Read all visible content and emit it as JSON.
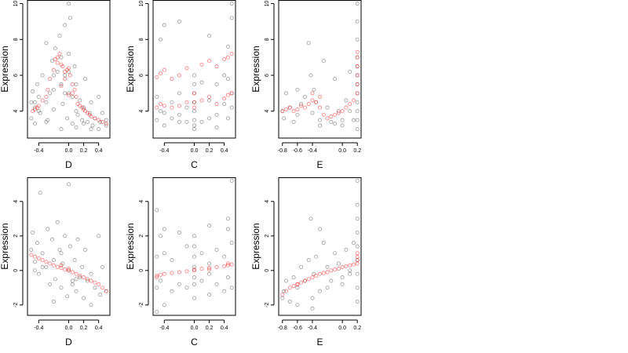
{
  "colors": {
    "black_points": "#000000",
    "red_points": "#ff0000",
    "axis": "#000000"
  },
  "chart_data": [
    {
      "type": "scatter",
      "xlabel": "D",
      "ylabel": "Expression",
      "xlim": [
        -0.55,
        0.55
      ],
      "ylim": [
        2.5,
        10.2
      ],
      "xticks": [
        -0.4,
        0.0,
        0.2,
        0.4
      ],
      "xtick_labels": [
        "-0.4",
        "0.0",
        "0.2",
        "0.4"
      ],
      "yticks": [
        4,
        6,
        8,
        10
      ],
      "ytick_labels": [
        "4",
        "6",
        "8",
        "10"
      ],
      "series": [
        {
          "color": "#000000",
          "opacity": 0.45,
          "x": [
            -0.5,
            -0.5,
            -0.48,
            -0.45,
            -0.45,
            -0.42,
            -0.4,
            -0.4,
            -0.38,
            -0.35,
            -0.3,
            -0.3,
            -0.28,
            -0.25,
            -0.22,
            -0.2,
            -0.2,
            -0.18,
            -0.15,
            -0.12,
            -0.1,
            -0.1,
            -0.08,
            -0.05,
            -0.05,
            -0.02,
            0.0,
            0.0,
            0.02,
            0.05,
            0.05,
            0.08,
            0.1,
            0.1,
            0.12,
            0.15,
            0.18,
            0.2,
            0.22,
            0.25,
            0.28,
            0.3,
            0.32,
            0.35,
            0.4,
            0.42,
            0.45,
            0.5,
            0.5,
            -0.3,
            -0.1,
            0.0,
            0.1,
            0.2,
            0.3,
            -0.45,
            -0.2,
            0.4,
            0.0,
            -0.05
          ],
          "y": [
            4.5,
            3.6,
            5.1,
            4.2,
            3.3,
            5.5,
            4.0,
            4.8,
            3.9,
            6.0,
            4.5,
            7.8,
            3.5,
            5.0,
            6.8,
            5.2,
            4.1,
            7.5,
            6.2,
            8.2,
            5.5,
            7.0,
            4.4,
            6.0,
            8.8,
            3.6,
            5.0,
            7.2,
            9.2,
            4.8,
            3.3,
            6.5,
            4.0,
            5.5,
            3.8,
            4.6,
            3.5,
            4.2,
            5.8,
            3.4,
            3.9,
            4.5,
            3.2,
            3.6,
            4.8,
            3.4,
            3.9,
            3.2,
            3.5,
            3.4,
            3.0,
            10.0,
            3.1,
            3.3,
            3.0,
            4.5,
            6.0,
            3.0,
            6.2,
            5.0
          ]
        },
        {
          "color": "#ff0000",
          "opacity": 0.6,
          "x": [
            -0.48,
            -0.45,
            -0.42,
            -0.4,
            -0.35,
            -0.3,
            -0.28,
            -0.25,
            -0.2,
            -0.18,
            -0.15,
            -0.12,
            -0.1,
            -0.08,
            -0.05,
            -0.02,
            0.0,
            0.02,
            0.05,
            0.08,
            0.1,
            0.12,
            0.15,
            0.18,
            0.2,
            0.22,
            0.25,
            0.28,
            0.3,
            0.35,
            0.4,
            0.45,
            0.5,
            -0.15,
            -0.05,
            0.05,
            -0.1,
            0.0
          ],
          "y": [
            4.0,
            4.1,
            4.2,
            4.3,
            4.6,
            4.8,
            5.2,
            5.8,
            6.3,
            6.9,
            7.0,
            7.2,
            6.6,
            6.5,
            6.2,
            6.3,
            6.4,
            6.0,
            5.5,
            5.2,
            4.8,
            4.4,
            4.3,
            4.2,
            4.1,
            4.0,
            3.9,
            3.8,
            3.7,
            3.6,
            3.5,
            3.4,
            3.3,
            6.7,
            5.8,
            5.0,
            5.4,
            4.9
          ]
        }
      ]
    },
    {
      "type": "scatter",
      "xlabel": "C",
      "ylabel": "Expression",
      "xlim": [
        -0.55,
        0.55
      ],
      "ylim": [
        2.5,
        10.2
      ],
      "xticks": [
        -0.4,
        0.0,
        0.2,
        0.4
      ],
      "xtick_labels": [
        "-0.4",
        "0.0",
        "0.2",
        "0.4"
      ],
      "yticks": [
        4,
        6,
        8,
        10
      ],
      "ytick_labels": [
        "4",
        "6",
        "8",
        "10"
      ],
      "series": [
        {
          "color": "#000000",
          "opacity": 0.45,
          "x": [
            -0.5,
            -0.5,
            -0.45,
            -0.45,
            -0.4,
            -0.4,
            -0.3,
            -0.3,
            -0.2,
            -0.2,
            -0.2,
            -0.1,
            -0.1,
            0.0,
            0.0,
            0.0,
            0.0,
            0.0,
            0.0,
            0.0,
            0.1,
            0.1,
            0.2,
            0.2,
            0.2,
            0.3,
            0.3,
            0.4,
            0.4,
            0.45,
            0.45,
            0.5,
            0.5,
            0.5,
            -0.4,
            0.0,
            0.3,
            -0.2,
            0.45,
            0.5
          ],
          "y": [
            3.5,
            4.8,
            4.0,
            8.0,
            3.2,
            8.8,
            4.5,
            3.6,
            3.8,
            5.0,
            9.0,
            4.2,
            3.4,
            3.0,
            3.5,
            4.0,
            4.5,
            5.0,
            5.5,
            6.0,
            3.4,
            5.6,
            3.6,
            4.6,
            8.2,
            3.8,
            5.5,
            4.4,
            6.0,
            3.6,
            7.6,
            4.2,
            5.0,
            10.0,
            3.9,
            3.2,
            3.1,
            3.4,
            5.8,
            9.2
          ]
        },
        {
          "color": "#ff0000",
          "opacity": 0.6,
          "x": [
            -0.5,
            -0.5,
            -0.45,
            -0.45,
            -0.4,
            -0.4,
            -0.3,
            -0.3,
            -0.2,
            -0.2,
            -0.1,
            -0.1,
            0.0,
            0.0,
            0.0,
            0.1,
            0.1,
            0.2,
            0.2,
            0.3,
            0.3,
            0.4,
            0.4,
            0.45,
            0.45,
            0.5,
            0.5
          ],
          "y": [
            4.2,
            5.9,
            4.4,
            6.1,
            4.3,
            6.3,
            4.2,
            5.8,
            4.3,
            6.0,
            4.5,
            6.4,
            4.2,
            4.5,
            5.0,
            4.6,
            6.6,
            4.8,
            6.8,
            4.4,
            6.5,
            4.7,
            6.9,
            4.9,
            7.0,
            5.0,
            7.2
          ]
        }
      ]
    },
    {
      "type": "scatter",
      "xlabel": "E",
      "ylabel": "Expression",
      "xlim": [
        -0.85,
        0.25
      ],
      "ylim": [
        2.5,
        10.2
      ],
      "xticks": [
        -0.8,
        -0.6,
        -0.4,
        0.0,
        0.2
      ],
      "xtick_labels": [
        "-0.8",
        "-0.6",
        "-0.4",
        "0.0",
        "0.2"
      ],
      "yticks": [
        4,
        6,
        8,
        10
      ],
      "ytick_labels": [
        "4",
        "6",
        "8",
        "10"
      ],
      "series": [
        {
          "color": "#000000",
          "opacity": 0.45,
          "x": [
            -0.8,
            -0.78,
            -0.75,
            -0.7,
            -0.65,
            -0.6,
            -0.55,
            -0.5,
            -0.45,
            -0.42,
            -0.4,
            -0.38,
            -0.35,
            -0.3,
            -0.25,
            -0.2,
            -0.15,
            -0.1,
            -0.05,
            0.0,
            0.05,
            0.1,
            0.15,
            0.2,
            0.2,
            0.2,
            0.2,
            0.2,
            0.2,
            0.2,
            0.2,
            0.2,
            0.2,
            0.2,
            0.2,
            -0.3,
            -0.1,
            0.0,
            0.1,
            -0.6
          ],
          "y": [
            4.0,
            3.6,
            5.0,
            4.2,
            3.4,
            3.8,
            4.4,
            4.8,
            7.8,
            6.0,
            3.9,
            5.2,
            4.5,
            3.5,
            6.8,
            4.2,
            3.4,
            5.8,
            4.0,
            3.2,
            4.6,
            6.2,
            3.5,
            3.0,
            3.5,
            4.0,
            4.5,
            5.0,
            5.5,
            6.0,
            6.5,
            7.0,
            8.0,
            9.0,
            10.0,
            3.2,
            3.3,
            3.5,
            4.0,
            5.2
          ]
        },
        {
          "color": "#ff0000",
          "opacity": 0.6,
          "x": [
            -0.8,
            -0.75,
            -0.7,
            -0.65,
            -0.6,
            -0.55,
            -0.5,
            -0.45,
            -0.4,
            -0.35,
            -0.3,
            -0.25,
            -0.2,
            -0.15,
            -0.1,
            -0.05,
            0.0,
            0.05,
            0.1,
            0.15,
            0.2,
            0.2,
            0.2,
            0.2,
            0.2,
            0.2,
            -0.4,
            -0.3
          ],
          "y": [
            4.0,
            4.1,
            4.2,
            4.0,
            4.1,
            4.3,
            4.2,
            4.4,
            4.6,
            4.5,
            4.2,
            3.8,
            3.6,
            3.7,
            3.8,
            3.9,
            4.0,
            4.2,
            4.4,
            4.6,
            5.0,
            5.5,
            6.0,
            6.5,
            7.0,
            7.3,
            5.0,
            4.8
          ]
        }
      ]
    },
    {
      "type": "scatter",
      "xlabel": "D",
      "ylabel": "Expression",
      "xlim": [
        -0.55,
        0.55
      ],
      "ylim": [
        -2.6,
        5.4
      ],
      "xticks": [
        -0.4,
        0.0,
        0.2,
        0.4
      ],
      "xtick_labels": [
        "-0.4",
        "0.0",
        "0.2",
        "0.4"
      ],
      "yticks": [
        -2,
        0,
        2,
        4
      ],
      "ytick_labels": [
        "-2",
        "0",
        "2",
        "4"
      ],
      "series": [
        {
          "color": "#000000",
          "opacity": 0.45,
          "x": [
            -0.5,
            -0.48,
            -0.45,
            -0.42,
            -0.4,
            -0.38,
            -0.35,
            -0.3,
            -0.28,
            -0.25,
            -0.22,
            -0.2,
            -0.18,
            -0.15,
            -0.12,
            -0.1,
            -0.08,
            -0.05,
            -0.02,
            0.0,
            0.02,
            0.05,
            0.08,
            0.1,
            0.12,
            0.15,
            0.18,
            0.2,
            0.22,
            0.25,
            0.3,
            0.35,
            0.4,
            0.42,
            0.45,
            0.5,
            -0.35,
            -0.1,
            0.0,
            0.1,
            -0.2,
            0.3,
            -0.45,
            0.05
          ],
          "y": [
            1.2,
            2.2,
            0.5,
            1.6,
            -0.2,
            4.5,
            1.0,
            0.2,
            2.4,
            -0.8,
            1.8,
            0.6,
            -0.5,
            2.8,
            1.2,
            -1.0,
            0.4,
            2.0,
            -1.5,
            0.0,
            1.4,
            -0.8,
            0.6,
            -1.2,
            1.8,
            -0.4,
            0.2,
            -1.6,
            1.2,
            -0.6,
            -0.2,
            -1.0,
            2.0,
            -1.4,
            0.2,
            -1.2,
            0.2,
            1.0,
            5.0,
            -0.5,
            -1.8,
            -2.0,
            0.0,
            -0.6
          ]
        },
        {
          "color": "#ff0000",
          "opacity": 0.6,
          "x": [
            -0.5,
            -0.45,
            -0.4,
            -0.35,
            -0.3,
            -0.25,
            -0.2,
            -0.15,
            -0.1,
            -0.05,
            0.0,
            0.05,
            0.1,
            0.15,
            0.2,
            0.25,
            0.3,
            0.35,
            0.4,
            0.45,
            0.5,
            -0.1,
            0.0
          ],
          "y": [
            0.9,
            0.8,
            0.7,
            0.6,
            0.5,
            0.4,
            0.3,
            0.2,
            0.15,
            0.05,
            0.0,
            -0.1,
            -0.2,
            -0.3,
            -0.4,
            -0.5,
            -0.6,
            -0.7,
            -0.8,
            -1.0,
            -1.2,
            0.3,
            0.1
          ]
        }
      ]
    },
    {
      "type": "scatter",
      "xlabel": "C",
      "ylabel": "Expression",
      "xlim": [
        -0.55,
        0.55
      ],
      "ylim": [
        -2.6,
        5.4
      ],
      "xticks": [
        -0.4,
        0.0,
        0.2,
        0.4
      ],
      "xtick_labels": [
        "-0.4",
        "0.0",
        "0.2",
        "0.4"
      ],
      "yticks": [
        -2,
        0,
        2,
        4
      ],
      "ytick_labels": [
        "-2",
        "0",
        "2",
        "4"
      ],
      "series": [
        {
          "color": "#000000",
          "opacity": 0.45,
          "x": [
            -0.5,
            -0.5,
            -0.5,
            -0.45,
            -0.45,
            -0.4,
            -0.4,
            -0.3,
            -0.3,
            -0.2,
            -0.2,
            -0.1,
            -0.1,
            0.0,
            0.0,
            0.0,
            0.0,
            0.0,
            0.0,
            0.1,
            0.1,
            0.2,
            0.2,
            0.2,
            0.3,
            0.3,
            0.4,
            0.4,
            0.45,
            0.45,
            0.5,
            0.5,
            0.5,
            -0.5,
            0.0,
            0.2,
            -0.4,
            0.45
          ],
          "y": [
            3.5,
            -1.0,
            0.8,
            2.0,
            -0.6,
            -2.0,
            1.0,
            -1.2,
            0.6,
            2.2,
            -0.8,
            1.4,
            -1.0,
            -1.6,
            -0.8,
            0.2,
            0.8,
            1.4,
            2.0,
            -0.6,
            1.0,
            -1.4,
            0.4,
            2.6,
            -0.8,
            1.2,
            -1.2,
            0.8,
            -0.4,
            2.4,
            -1.0,
            1.6,
            5.2,
            -2.4,
            -0.4,
            -0.2,
            2.4,
            3.0
          ]
        },
        {
          "color": "#ff0000",
          "opacity": 0.6,
          "x": [
            -0.5,
            -0.45,
            -0.4,
            -0.3,
            -0.2,
            -0.1,
            0.0,
            0.0,
            0.1,
            0.2,
            0.3,
            0.4,
            0.45,
            0.5,
            -0.5,
            0.2,
            0.45
          ],
          "y": [
            -0.3,
            -0.25,
            -0.2,
            -0.15,
            -0.1,
            -0.05,
            0.0,
            0.05,
            0.1,
            0.15,
            0.2,
            0.25,
            0.3,
            0.35,
            -0.4,
            0.05,
            0.4
          ]
        }
      ]
    },
    {
      "type": "scatter",
      "xlabel": "E",
      "ylabel": "Expression",
      "xlim": [
        -0.85,
        0.25
      ],
      "ylim": [
        -2.6,
        5.4
      ],
      "xticks": [
        -0.8,
        -0.6,
        -0.4,
        0.0,
        0.2
      ],
      "xtick_labels": [
        "-0.8",
        "-0.6",
        "-0.4",
        "0.0",
        "0.2"
      ],
      "yticks": [
        -2,
        0,
        2,
        4
      ],
      "ytick_labels": [
        "-2",
        "0",
        "2",
        "4"
      ],
      "series": [
        {
          "color": "#000000",
          "opacity": 0.45,
          "x": [
            -0.8,
            -0.78,
            -0.75,
            -0.7,
            -0.65,
            -0.6,
            -0.55,
            -0.5,
            -0.45,
            -0.42,
            -0.4,
            -0.38,
            -0.35,
            -0.3,
            -0.25,
            -0.2,
            -0.15,
            -0.1,
            -0.05,
            0.0,
            0.05,
            0.1,
            0.15,
            0.2,
            0.2,
            0.2,
            0.2,
            0.2,
            0.2,
            0.2,
            0.2,
            0.2,
            -0.4,
            -0.2,
            0.0,
            0.1,
            -0.6,
            -0.3
          ],
          "y": [
            -1.6,
            -1.2,
            -0.6,
            -1.8,
            -0.4,
            -1.0,
            0.2,
            -0.6,
            0.6,
            3.0,
            -2.2,
            -0.2,
            0.8,
            -1.2,
            1.6,
            0.2,
            -0.6,
            1.0,
            0.4,
            -0.4,
            1.2,
            0.0,
            1.6,
            -1.8,
            -1.0,
            -0.2,
            0.6,
            1.4,
            2.2,
            3.0,
            3.8,
            5.2,
            -1.6,
            -1.0,
            -0.8,
            -0.2,
            -2.0,
            2.4
          ]
        },
        {
          "color": "#ff0000",
          "opacity": 0.6,
          "x": [
            -0.8,
            -0.75,
            -0.7,
            -0.65,
            -0.6,
            -0.55,
            -0.5,
            -0.45,
            -0.4,
            -0.35,
            -0.3,
            -0.25,
            -0.2,
            -0.15,
            -0.1,
            -0.05,
            0.0,
            0.05,
            0.1,
            0.15,
            0.2,
            0.2,
            0.2,
            0.2,
            -0.6
          ],
          "y": [
            -1.4,
            -1.2,
            -1.0,
            -0.9,
            -0.8,
            -0.7,
            -0.6,
            -0.5,
            -0.4,
            -0.3,
            -0.2,
            -0.15,
            -0.1,
            0.0,
            0.05,
            0.1,
            0.2,
            0.25,
            0.3,
            0.35,
            0.4,
            0.6,
            0.8,
            1.0,
            -0.8
          ]
        }
      ]
    }
  ]
}
